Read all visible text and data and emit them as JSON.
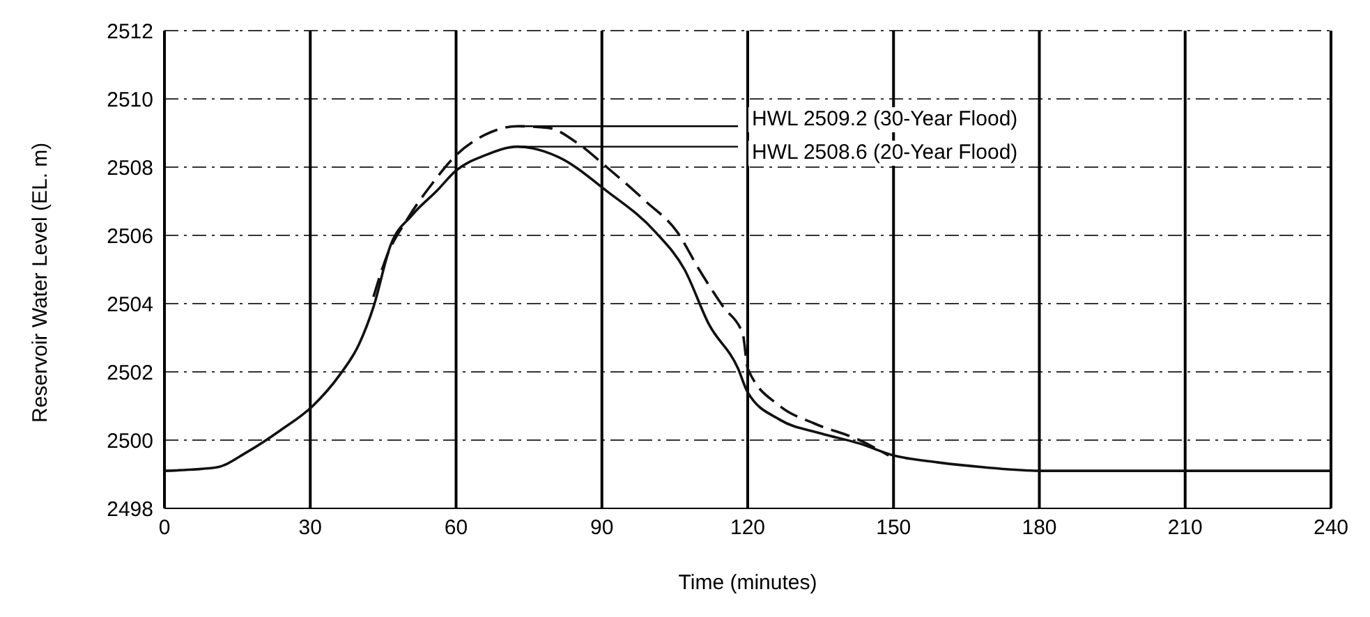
{
  "chart_data": {
    "type": "line",
    "xlabel": "Time (minutes)",
    "ylabel": "Reservoir Water Level (EL. m)",
    "xlim": [
      0,
      240
    ],
    "xticks": [
      0,
      30,
      60,
      90,
      120,
      150,
      180,
      210,
      240
    ],
    "ylim": [
      2498,
      2512
    ],
    "yticks": [
      2498,
      2500,
      2502,
      2504,
      2506,
      2508,
      2510,
      2512
    ],
    "grid": true,
    "legend": false,
    "marker": "none",
    "series": [
      {
        "color": "#111111",
        "line_style": "solid",
        "x": [
          0,
          10.6,
          17,
          24,
          30.5,
          36,
          40,
          43,
          46.5,
          51,
          56,
          60,
          66,
          72.6,
          81,
          91,
          101,
          107,
          112,
          118,
          120,
          126.6,
          135,
          143,
          150,
          159,
          169,
          180,
          210,
          240
        ],
        "values": [
          2499.1,
          2499.2,
          2499.65,
          2500.3,
          2501.0,
          2501.9,
          2502.8,
          2503.9,
          2505.7,
          2506.6,
          2507.3,
          2507.9,
          2508.35,
          2508.6,
          2508.3,
          2507.3,
          2506.1,
          2505.0,
          2503.4,
          2502.1,
          2501.4,
          2500.6,
          2500.2,
          2499.9,
          2499.55,
          2499.35,
          2499.2,
          2499.1,
          2499.1,
          2499.1
        ]
      },
      {
        "color": "#111111",
        "line_style": "dashed",
        "x": [
          43,
          45.5,
          50.3,
          55,
          60,
          66,
          72.6,
          79,
          85,
          91,
          99,
          105.5,
          110,
          115,
          119,
          120,
          126.6,
          133.5,
          143,
          149
        ],
        "values": [
          2504.2,
          2505.3,
          2506.55,
          2507.5,
          2508.35,
          2508.95,
          2509.2,
          2509.15,
          2508.7,
          2508.0,
          2507.0,
          2506.1,
          2505.0,
          2503.9,
          2503.1,
          2502.1,
          2501.0,
          2500.5,
          2500.0,
          2499.55
        ]
      }
    ],
    "annotations": [
      {
        "text": "HWL 2509.2 (30-Year Flood)",
        "x": 72.6,
        "y": 2509.2
      },
      {
        "text": "HWL 2508.6 (20-Year Flood)",
        "x": 72.6,
        "y": 2508.6
      }
    ]
  }
}
